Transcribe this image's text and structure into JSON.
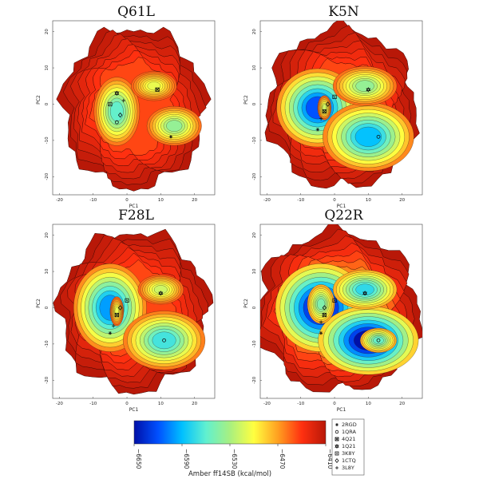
{
  "chart_data": [
    {
      "type": "heatmap",
      "title": "Q61L",
      "xlabel": "PC1",
      "ylabel": "PC2",
      "xticks": [
        -20,
        -10,
        0,
        10,
        20
      ],
      "yticks": [
        20,
        10,
        0,
        -10,
        -20
      ],
      "xlim": [
        -22,
        26
      ],
      "ylim": [
        -25,
        23
      ],
      "blob": {
        "cx": 2,
        "cy": -1,
        "rx": 21,
        "ry": 22
      },
      "wells": [
        {
          "x": -3,
          "y": -2,
          "rx": 5,
          "ry": 7,
          "depth": 0.55
        },
        {
          "x": 14,
          "y": -6,
          "rx": 6,
          "ry": 4,
          "depth": 0.45
        },
        {
          "x": 8,
          "y": 5,
          "rx": 5,
          "ry": 3,
          "depth": 0.3
        }
      ],
      "base_level": 0.15,
      "markers": [
        {
          "name": "2RGD",
          "x": 13,
          "y": -9
        },
        {
          "name": "1QRA",
          "x": -3,
          "y": -5
        },
        {
          "name": "4Q21",
          "x": 9,
          "y": 4
        },
        {
          "name": "1Q21",
          "x": -3,
          "y": 3
        },
        {
          "name": "3K8Y",
          "x": -5,
          "y": 0
        },
        {
          "name": "1CTQ",
          "x": -2,
          "y": -3
        },
        {
          "name": "3L8Y",
          "x": -1,
          "y": 1
        }
      ]
    },
    {
      "type": "heatmap",
      "title": "K5N",
      "xlabel": "PC1",
      "ylabel": "PC2",
      "xticks": [
        -20,
        -10,
        0,
        10,
        20
      ],
      "yticks": [
        20,
        10,
        0,
        -10,
        -20
      ],
      "xlim": [
        -22,
        26
      ],
      "ylim": [
        -25,
        23
      ],
      "blob": {
        "cx": 2,
        "cy": -1,
        "rx": 22,
        "ry": 22
      },
      "wells": [
        {
          "x": -5,
          "y": -1,
          "rx": 9,
          "ry": 8,
          "depth": 0.85
        },
        {
          "x": 10,
          "y": -9,
          "rx": 10,
          "ry": 7,
          "depth": 0.7
        },
        {
          "x": 9,
          "y": 5,
          "rx": 7,
          "ry": 4,
          "depth": 0.45
        },
        {
          "x": -3,
          "y": -1,
          "rx": 1.5,
          "ry": 2.5,
          "depth": 0.35
        }
      ],
      "base_level": 0.15,
      "markers": [
        {
          "name": "2RGD",
          "x": -5,
          "y": -7
        },
        {
          "name": "1QRA",
          "x": 13,
          "y": -9
        },
        {
          "name": "4Q21",
          "x": -3,
          "y": -2
        },
        {
          "name": "1Q21",
          "x": 10,
          "y": 4
        },
        {
          "name": "3K8Y",
          "x": 0,
          "y": 2
        },
        {
          "name": "1CTQ",
          "x": -2,
          "y": 0
        },
        {
          "name": "3L8Y",
          "x": -4,
          "y": -4
        }
      ]
    },
    {
      "type": "heatmap",
      "title": "F28L",
      "xlabel": "PC1",
      "ylabel": "PC2",
      "xticks": [
        -20,
        -10,
        0,
        10,
        20
      ],
      "yticks": [
        20,
        10,
        0,
        -10,
        -20
      ],
      "xlim": [
        -22,
        26
      ],
      "ylim": [
        -25,
        23
      ],
      "blob": {
        "cx": 2,
        "cy": -1,
        "rx": 22,
        "ry": 22
      },
      "wells": [
        {
          "x": -5,
          "y": 0,
          "rx": 8,
          "ry": 9,
          "depth": 0.75
        },
        {
          "x": 11,
          "y": -9,
          "rx": 9,
          "ry": 6,
          "depth": 0.6
        },
        {
          "x": 10,
          "y": 5,
          "rx": 5,
          "ry": 3,
          "depth": 0.35
        },
        {
          "x": -3,
          "y": -1,
          "rx": 1.5,
          "ry": 3,
          "depth": 0.3
        }
      ],
      "base_level": 0.15,
      "markers": [
        {
          "name": "2RGD",
          "x": -5,
          "y": -7
        },
        {
          "name": "1QRA",
          "x": 11,
          "y": -9
        },
        {
          "name": "4Q21",
          "x": -3,
          "y": -2
        },
        {
          "name": "1Q21",
          "x": 10,
          "y": 4
        },
        {
          "name": "3K8Y",
          "x": 0,
          "y": 2
        },
        {
          "name": "1CTQ",
          "x": -2,
          "y": 0
        },
        {
          "name": "3L8Y",
          "x": -4,
          "y": -5
        }
      ]
    },
    {
      "type": "heatmap",
      "title": "Q22R",
      "xlabel": "PC1",
      "ylabel": "PC2",
      "xticks": [
        -20,
        -10,
        0,
        10,
        20
      ],
      "yticks": [
        20,
        10,
        0,
        -10,
        -20
      ],
      "xlim": [
        -22,
        26
      ],
      "ylim": [
        -25,
        23
      ],
      "blob": {
        "cx": 1,
        "cy": -1,
        "rx": 24,
        "ry": 22
      },
      "wells": [
        {
          "x": -4,
          "y": 0,
          "rx": 10,
          "ry": 9,
          "depth": 1.0
        },
        {
          "x": 10,
          "y": -9,
          "rx": 11,
          "ry": 7,
          "depth": 1.0
        },
        {
          "x": 9,
          "y": 5,
          "rx": 7,
          "ry": 4,
          "depth": 0.6
        },
        {
          "x": 13,
          "y": -9,
          "rx": 4,
          "ry": 2.5,
          "depth": 0.5
        },
        {
          "x": -4,
          "y": 1,
          "rx": 3,
          "ry": 4,
          "depth": 0.45
        }
      ],
      "base_level": 0.22,
      "markers": [
        {
          "name": "2RGD",
          "x": -4,
          "y": -7
        },
        {
          "name": "1QRA",
          "x": 13,
          "y": -9
        },
        {
          "name": "4Q21",
          "x": -3,
          "y": -2
        },
        {
          "name": "1Q21",
          "x": 9,
          "y": 4
        },
        {
          "name": "3K8Y",
          "x": 0,
          "y": 2
        },
        {
          "name": "1CTQ",
          "x": -3,
          "y": 0
        },
        {
          "name": "3L8Y",
          "x": -4,
          "y": -4
        }
      ]
    }
  ],
  "colorbar": {
    "label": "Amber ff14SB (kcal/mol)",
    "ticks": [
      "−6650",
      "−6590",
      "−6530",
      "−6470",
      "−6410"
    ],
    "colors": [
      "#0010a8",
      "#0050ff",
      "#00c0ff",
      "#60f0d0",
      "#a8f080",
      "#ffff40",
      "#ffa020",
      "#ff3010",
      "#b81808"
    ]
  },
  "legend": {
    "entries": [
      {
        "name": "2RGD",
        "symbol": "asterisk"
      },
      {
        "name": "1QRA",
        "symbol": "circle"
      },
      {
        "name": "4Q21",
        "symbol": "square-x"
      },
      {
        "name": "1Q21",
        "symbol": "star"
      },
      {
        "name": "3K8Y",
        "symbol": "square-dot"
      },
      {
        "name": "1CTQ",
        "symbol": "diamond"
      },
      {
        "name": "3L8Y",
        "symbol": "cross"
      }
    ]
  }
}
